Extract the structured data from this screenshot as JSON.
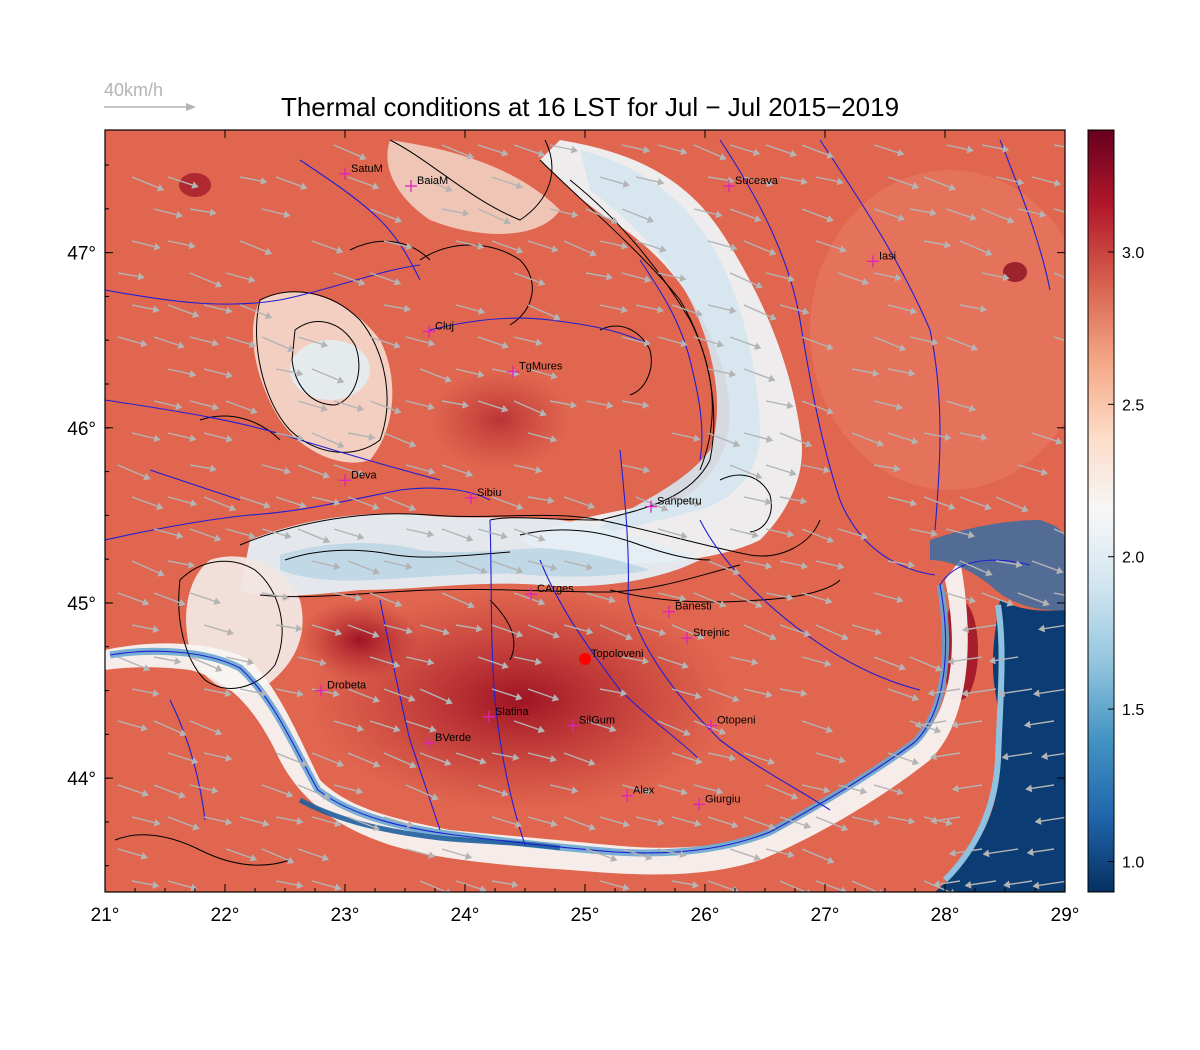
{
  "title": "Thermal conditions at 16 LST for Jul − Jul  2015−2019",
  "wind_scale_label": "40km/h",
  "map": {
    "lon_range": [
      21,
      29
    ],
    "lat_range": [
      43.35,
      47.7
    ],
    "lon_ticks": [
      "21°",
      "22°",
      "23°",
      "24°",
      "25°",
      "26°",
      "27°",
      "28°",
      "29°"
    ],
    "lat_ticks": [
      "44°",
      "45°",
      "46°",
      "47°"
    ],
    "cities": [
      {
        "name": "SatuM",
        "lon": 23.0,
        "lat": 47.45
      },
      {
        "name": "BaiaM",
        "lon": 23.55,
        "lat": 47.38
      },
      {
        "name": "Suceava",
        "lon": 26.2,
        "lat": 47.38
      },
      {
        "name": "Iasi",
        "lon": 27.4,
        "lat": 46.95
      },
      {
        "name": "Cluj",
        "lon": 23.7,
        "lat": 46.55
      },
      {
        "name": "TgMures",
        "lon": 24.4,
        "lat": 46.32
      },
      {
        "name": "Deva",
        "lon": 23.0,
        "lat": 45.7
      },
      {
        "name": "Sibiu",
        "lon": 24.05,
        "lat": 45.6
      },
      {
        "name": "Sanpetru",
        "lon": 25.55,
        "lat": 45.55
      },
      {
        "name": "CArges",
        "lon": 24.55,
        "lat": 45.05
      },
      {
        "name": "Banesti",
        "lon": 25.7,
        "lat": 44.95
      },
      {
        "name": "Strejnic",
        "lon": 25.85,
        "lat": 44.8
      },
      {
        "name": "Topoloveni",
        "lon": 25.0,
        "lat": 44.68,
        "highlight": true
      },
      {
        "name": "Drobeta",
        "lon": 22.8,
        "lat": 44.5
      },
      {
        "name": "Slatina",
        "lon": 24.2,
        "lat": 44.35
      },
      {
        "name": "SilGum",
        "lon": 24.9,
        "lat": 44.3
      },
      {
        "name": "Otopeni",
        "lon": 26.05,
        "lat": 44.3
      },
      {
        "name": "BVerde",
        "lon": 23.7,
        "lat": 44.2
      },
      {
        "name": "Alex",
        "lon": 25.35,
        "lat": 43.9
      },
      {
        "name": "Giurgiu",
        "lon": 25.95,
        "lat": 43.85
      }
    ]
  },
  "colorbar": {
    "min": 0.9,
    "max": 3.4,
    "ticks": [
      "1.0",
      "1.5",
      "2.0",
      "2.5",
      "3.0"
    ],
    "tick_values": [
      1.0,
      1.5,
      2.0,
      2.5,
      3.0
    ],
    "colors": [
      "#053061",
      "#2166ac",
      "#4393c3",
      "#92c5de",
      "#d1e5f0",
      "#f7f7f7",
      "#fddbc7",
      "#f4a582",
      "#d6604d",
      "#b2182b",
      "#67001f"
    ]
  },
  "colors": {
    "land_base": "#e0664f",
    "hot": "#b3232c",
    "cool_mountain": "#dce9f0",
    "sea": "#0b3c73",
    "river": "#1f1fd6",
    "wind_arrow": "#b4b4b4",
    "city_marker": "#e020c0",
    "highlight_marker": "#ff0000"
  }
}
